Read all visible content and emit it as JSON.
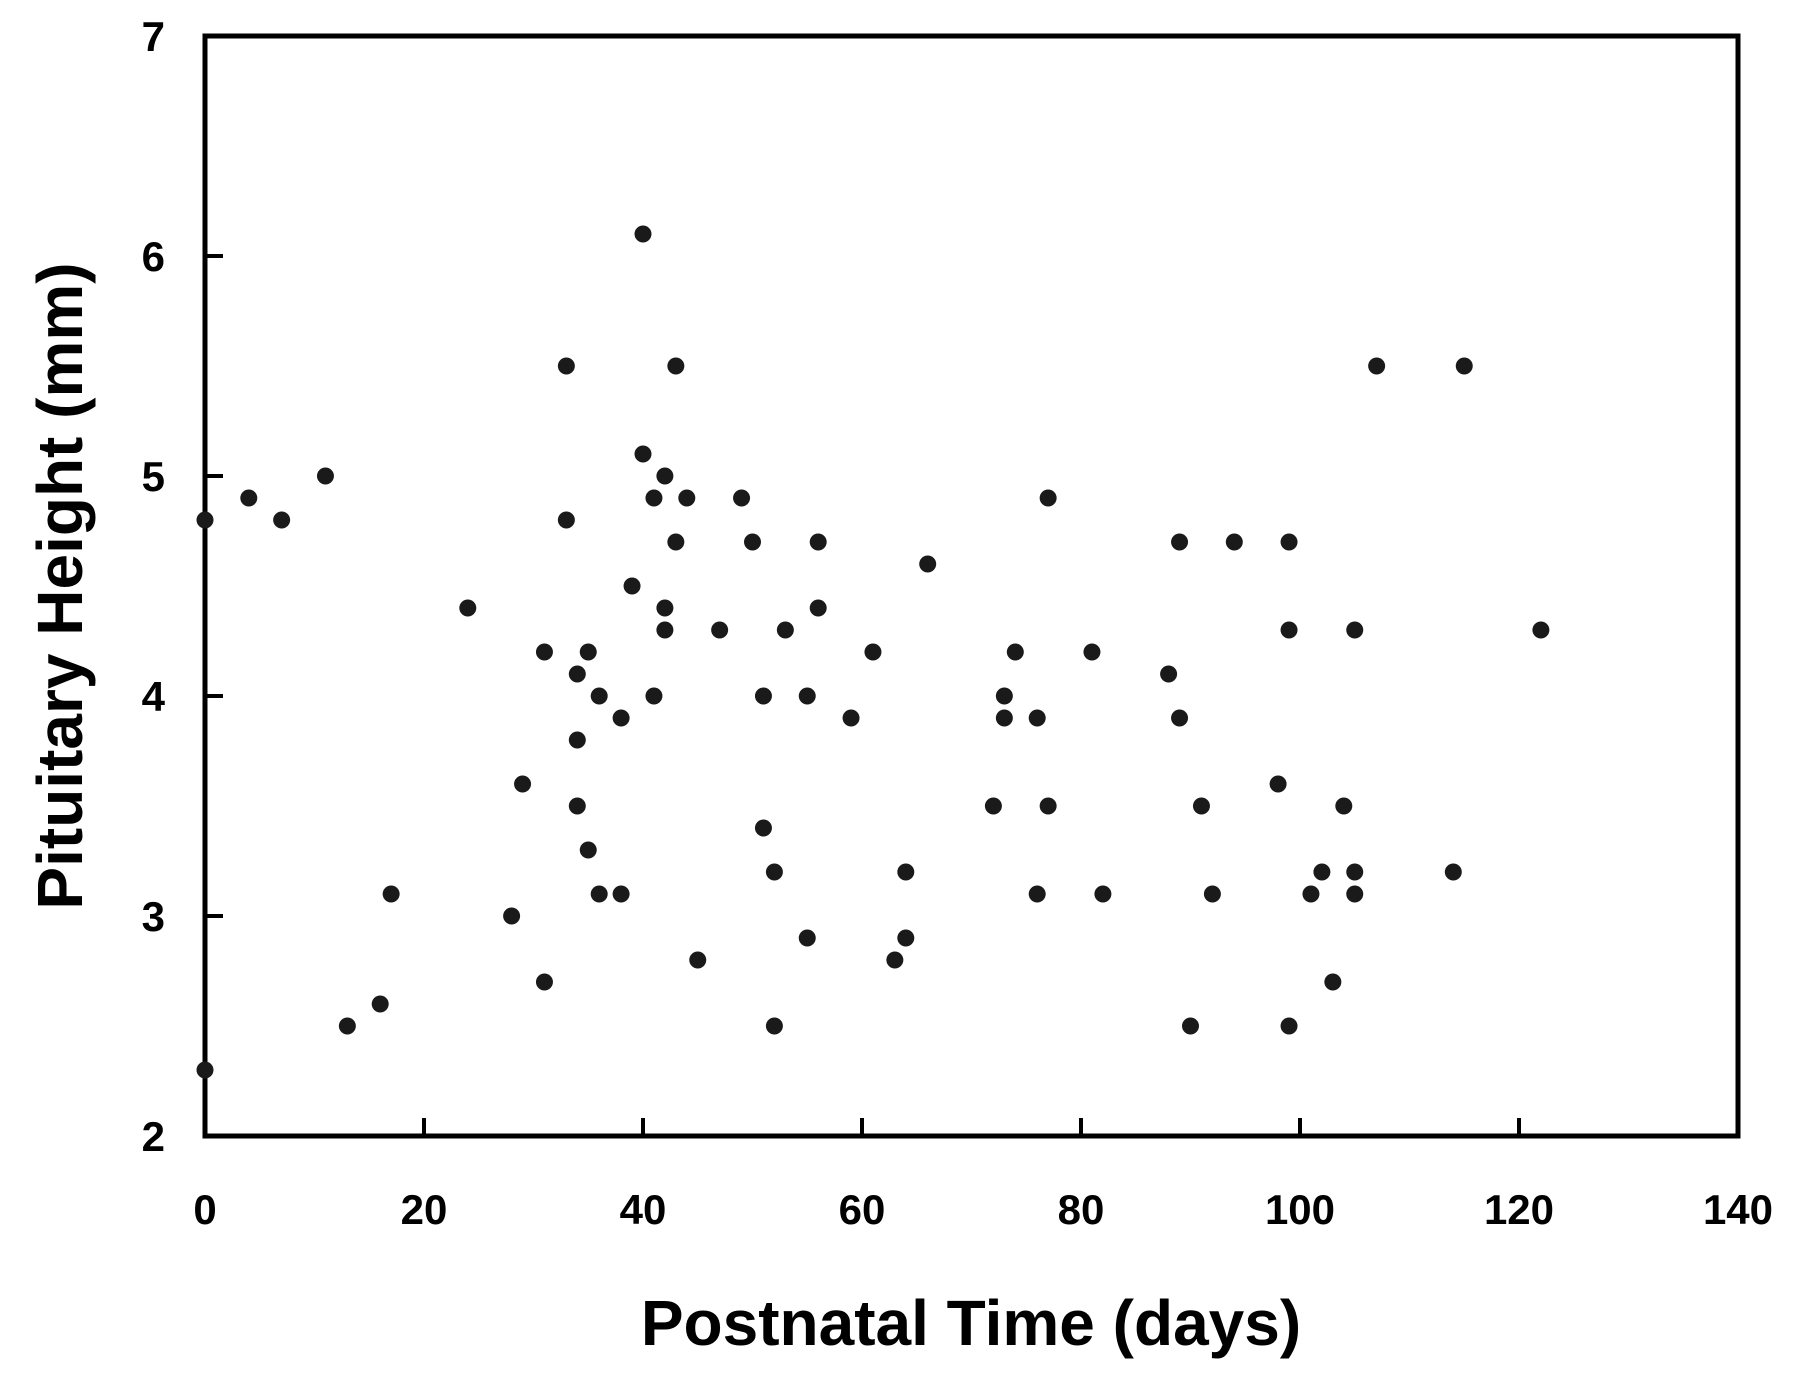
{
  "chart_data": {
    "type": "scatter",
    "title": "",
    "xlabel": "Postnatal Time (days)",
    "ylabel": "Pituitary Height (mm)",
    "xlim": [
      0,
      140
    ],
    "ylim": [
      2,
      7
    ],
    "x_ticks": [
      "0",
      "20",
      "40",
      "60",
      "80",
      "100",
      "120",
      "140"
    ],
    "y_ticks": [
      "2",
      "3",
      "4",
      "5",
      "6",
      "7"
    ],
    "grid": false,
    "legend": "none",
    "marker_color": "#1a1a1a",
    "points": [
      {
        "x": 0,
        "y": 4.8
      },
      {
        "x": 0,
        "y": 2.3
      },
      {
        "x": 4,
        "y": 4.9
      },
      {
        "x": 7,
        "y": 4.8
      },
      {
        "x": 11,
        "y": 5.0
      },
      {
        "x": 13,
        "y": 2.5
      },
      {
        "x": 16,
        "y": 2.6
      },
      {
        "x": 17,
        "y": 3.1
      },
      {
        "x": 24,
        "y": 4.4
      },
      {
        "x": 28,
        "y": 3.0
      },
      {
        "x": 29,
        "y": 3.6
      },
      {
        "x": 31,
        "y": 4.2
      },
      {
        "x": 31,
        "y": 2.7
      },
      {
        "x": 33,
        "y": 5.5
      },
      {
        "x": 33,
        "y": 4.8
      },
      {
        "x": 34,
        "y": 4.1
      },
      {
        "x": 34,
        "y": 3.8
      },
      {
        "x": 34,
        "y": 3.5
      },
      {
        "x": 35,
        "y": 4.2
      },
      {
        "x": 35,
        "y": 3.3
      },
      {
        "x": 36,
        "y": 4.0
      },
      {
        "x": 36,
        "y": 3.1
      },
      {
        "x": 38,
        "y": 3.9
      },
      {
        "x": 38,
        "y": 3.1
      },
      {
        "x": 39,
        "y": 4.5
      },
      {
        "x": 40,
        "y": 6.1
      },
      {
        "x": 40,
        "y": 5.1
      },
      {
        "x": 41,
        "y": 4.9
      },
      {
        "x": 41,
        "y": 4.0
      },
      {
        "x": 42,
        "y": 5.0
      },
      {
        "x": 42,
        "y": 4.4
      },
      {
        "x": 42,
        "y": 4.3
      },
      {
        "x": 43,
        "y": 5.5
      },
      {
        "x": 43,
        "y": 4.7
      },
      {
        "x": 44,
        "y": 4.9
      },
      {
        "x": 45,
        "y": 2.8
      },
      {
        "x": 47,
        "y": 4.3
      },
      {
        "x": 49,
        "y": 4.9
      },
      {
        "x": 50,
        "y": 4.7
      },
      {
        "x": 51,
        "y": 4.0
      },
      {
        "x": 51,
        "y": 3.4
      },
      {
        "x": 52,
        "y": 3.2
      },
      {
        "x": 52,
        "y": 2.5
      },
      {
        "x": 53,
        "y": 4.3
      },
      {
        "x": 55,
        "y": 4.0
      },
      {
        "x": 55,
        "y": 2.9
      },
      {
        "x": 56,
        "y": 4.7
      },
      {
        "x": 56,
        "y": 4.4
      },
      {
        "x": 59,
        "y": 3.9
      },
      {
        "x": 61,
        "y": 4.2
      },
      {
        "x": 63,
        "y": 2.8
      },
      {
        "x": 64,
        "y": 3.2
      },
      {
        "x": 64,
        "y": 2.9
      },
      {
        "x": 66,
        "y": 4.6
      },
      {
        "x": 72,
        "y": 3.5
      },
      {
        "x": 73,
        "y": 4.0
      },
      {
        "x": 73,
        "y": 3.9
      },
      {
        "x": 74,
        "y": 4.2
      },
      {
        "x": 76,
        "y": 3.9
      },
      {
        "x": 76,
        "y": 3.1
      },
      {
        "x": 77,
        "y": 4.9
      },
      {
        "x": 77,
        "y": 3.5
      },
      {
        "x": 81,
        "y": 4.2
      },
      {
        "x": 82,
        "y": 3.1
      },
      {
        "x": 88,
        "y": 4.1
      },
      {
        "x": 89,
        "y": 4.7
      },
      {
        "x": 89,
        "y": 3.9
      },
      {
        "x": 90,
        "y": 2.5
      },
      {
        "x": 91,
        "y": 3.5
      },
      {
        "x": 92,
        "y": 3.1
      },
      {
        "x": 94,
        "y": 4.7
      },
      {
        "x": 98,
        "y": 3.6
      },
      {
        "x": 99,
        "y": 4.7
      },
      {
        "x": 99,
        "y": 4.3
      },
      {
        "x": 99,
        "y": 2.5
      },
      {
        "x": 101,
        "y": 3.1
      },
      {
        "x": 102,
        "y": 3.2
      },
      {
        "x": 103,
        "y": 2.7
      },
      {
        "x": 104,
        "y": 3.5
      },
      {
        "x": 105,
        "y": 4.3
      },
      {
        "x": 105,
        "y": 3.2
      },
      {
        "x": 105,
        "y": 3.1
      },
      {
        "x": 107,
        "y": 5.5
      },
      {
        "x": 114,
        "y": 3.2
      },
      {
        "x": 115,
        "y": 5.5
      },
      {
        "x": 122,
        "y": 4.3
      }
    ]
  }
}
